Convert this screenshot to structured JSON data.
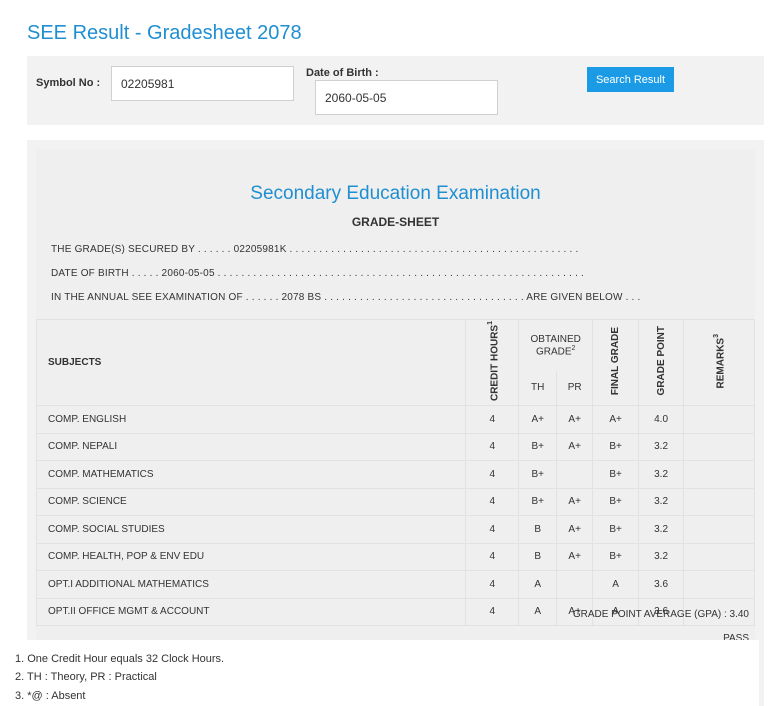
{
  "page": {
    "title": "SEE Result - Gradesheet 2078"
  },
  "search": {
    "symbol_label": "Symbol No :",
    "symbol_value": "02205981",
    "dob_label": "Date of Birth :",
    "dob_value": "2060-05-05",
    "button_label": "Search Result"
  },
  "sheet": {
    "exam_title": "Secondary Education Examination",
    "gradesheet_title": "GRADE-SHEET",
    "line1": "THE GRADE(S) SECURED BY . . . . . . 02205981K . . . . . . . . . . . . . . . . . . . . . . . . . . . . . . . . . . . . . . . . . . . . . . . . .",
    "line2": "DATE OF BIRTH . . . . . 2060-05-05 . . . . . . . . . . . . . . . . . . . . . . . . . . . . . . . . . . . . . . . . . . . . . . . . . . . . . . . . . . . . . .",
    "line3": "IN THE ANNUAL SEE EXAMINATION OF . . . . . . 2078 BS . . . . . . . . . . . . . . . . . . . . . . . . . . . . . . . . . . ARE GIVEN BELOW . . ."
  },
  "table": {
    "headers": {
      "subjects": "SUBJECTS",
      "credit_hours": "CREDIT HOURS",
      "credit_sup": "1",
      "obtained_grade": "OBTAINED GRADE",
      "obtained_sup": "2",
      "th": "TH",
      "pr": "PR",
      "final_grade": "FINAL GRADE",
      "grade_point": "GRADE POINT",
      "remarks": "REMARKS",
      "remarks_sup": "3"
    },
    "rows": [
      {
        "subject": "COMP. ENGLISH",
        "credit": "4",
        "th": "A+",
        "pr": "A+",
        "final": "A+",
        "gp": "4.0",
        "remarks": ""
      },
      {
        "subject": "COMP. NEPALI",
        "credit": "4",
        "th": "B+",
        "pr": "A+",
        "final": "B+",
        "gp": "3.2",
        "remarks": ""
      },
      {
        "subject": "COMP. MATHEMATICS",
        "credit": "4",
        "th": "B+",
        "pr": "",
        "final": "B+",
        "gp": "3.2",
        "remarks": ""
      },
      {
        "subject": "COMP. SCIENCE",
        "credit": "4",
        "th": "B+",
        "pr": "A+",
        "final": "B+",
        "gp": "3.2",
        "remarks": ""
      },
      {
        "subject": "COMP. SOCIAL STUDIES",
        "credit": "4",
        "th": "B",
        "pr": "A+",
        "final": "B+",
        "gp": "3.2",
        "remarks": ""
      },
      {
        "subject": "COMP. HEALTH, POP & ENV EDU",
        "credit": "4",
        "th": "B",
        "pr": "A+",
        "final": "B+",
        "gp": "3.2",
        "remarks": ""
      },
      {
        "subject": "OPT.I ADDITIONAL MATHEMATICS",
        "credit": "4",
        "th": "A",
        "pr": "",
        "final": "A",
        "gp": "3.6",
        "remarks": ""
      },
      {
        "subject": "OPT.II OFFICE MGMT & ACCOUNT",
        "credit": "4",
        "th": "A",
        "pr": "A+",
        "final": "A",
        "gp": "3.6",
        "remarks": ""
      }
    ]
  },
  "summary": {
    "gpa": "GRADE POINT AVERAGE (GPA) : 3.40",
    "result": "PASS"
  },
  "notes": [
    "1. One Credit Hour equals 32 Clock Hours.",
    "2. TH : Theory, PR : Practical",
    "3. *@ : Absent"
  ],
  "colors": {
    "accent": "#1f8fd1",
    "button": "#1b9be6",
    "panel": "#f2f2f2"
  }
}
